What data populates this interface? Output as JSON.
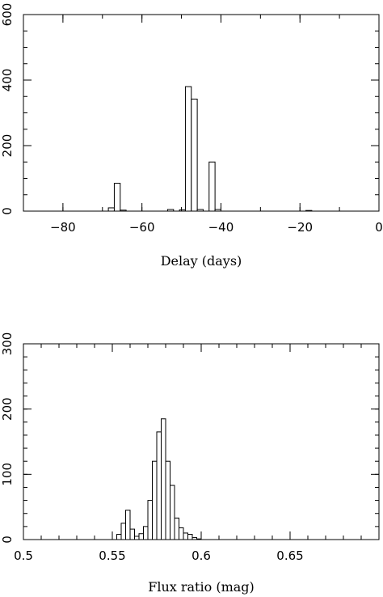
{
  "chart_data": [
    {
      "type": "histogram",
      "xlabel": "Delay (days)",
      "ylabel": "",
      "xlim": [
        -90,
        0
      ],
      "ylim": [
        0,
        600
      ],
      "x_ticks": [
        "−80",
        "−60",
        "−40",
        "−20",
        "0"
      ],
      "x_tick_values": [
        -80,
        -60,
        -40,
        -20,
        0
      ],
      "y_ticks": [
        "0",
        "200",
        "400",
        "600"
      ],
      "y_tick_values": [
        0,
        200,
        400,
        600
      ],
      "bin_width": 1.5,
      "bins": [
        {
          "x": -68.5,
          "value": 10
        },
        {
          "x": -67.0,
          "value": 85
        },
        {
          "x": -65.5,
          "value": 3
        },
        {
          "x": -53.5,
          "value": 5
        },
        {
          "x": -50.5,
          "value": 4
        },
        {
          "x": -49.0,
          "value": 380
        },
        {
          "x": -47.5,
          "value": 342
        },
        {
          "x": -46.0,
          "value": 5
        },
        {
          "x": -43.0,
          "value": 150
        },
        {
          "x": -41.5,
          "value": 5
        },
        {
          "x": -18.5,
          "value": 2
        }
      ]
    },
    {
      "type": "histogram",
      "xlabel": "Flux ratio (mag)",
      "ylabel": "",
      "xlim": [
        0.5,
        0.7
      ],
      "ylim": [
        0,
        300
      ],
      "x_ticks": [
        "0.5",
        "0.55",
        "0.6",
        "0.65"
      ],
      "x_tick_values": [
        0.5,
        0.55,
        0.6,
        0.65
      ],
      "y_ticks": [
        "0",
        "100",
        "200",
        "300"
      ],
      "y_tick_values": [
        0,
        100,
        200,
        300
      ],
      "bin_width": 0.0025,
      "bins": [
        {
          "x": 0.5525,
          "value": 8
        },
        {
          "x": 0.555,
          "value": 25
        },
        {
          "x": 0.5575,
          "value": 45
        },
        {
          "x": 0.56,
          "value": 16
        },
        {
          "x": 0.5625,
          "value": 5
        },
        {
          "x": 0.565,
          "value": 9
        },
        {
          "x": 0.5675,
          "value": 20
        },
        {
          "x": 0.57,
          "value": 60
        },
        {
          "x": 0.5725,
          "value": 120
        },
        {
          "x": 0.575,
          "value": 165
        },
        {
          "x": 0.5775,
          "value": 185
        },
        {
          "x": 0.58,
          "value": 120
        },
        {
          "x": 0.5825,
          "value": 83
        },
        {
          "x": 0.585,
          "value": 33
        },
        {
          "x": 0.5875,
          "value": 18
        },
        {
          "x": 0.59,
          "value": 10
        },
        {
          "x": 0.5925,
          "value": 8
        },
        {
          "x": 0.595,
          "value": 3
        },
        {
          "x": 0.5975,
          "value": 1
        }
      ]
    }
  ]
}
